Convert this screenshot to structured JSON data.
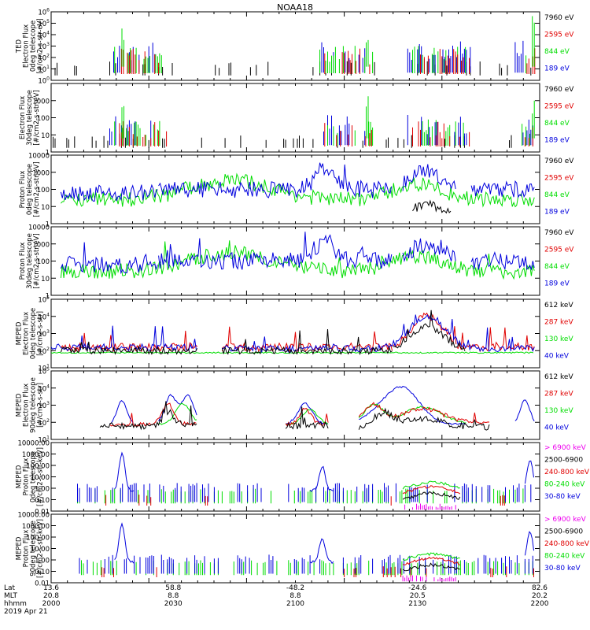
{
  "title": "NOAA18",
  "footer": {
    "row_labels": [
      "Lat",
      "MLT",
      "hhmm"
    ],
    "date": "2019 Apr 21",
    "columns": [
      {
        "lat": "13.6",
        "mlt": "20.8",
        "hhmm": "2000"
      },
      {
        "lat": "58.8",
        "mlt": "8.8",
        "hhmm": "2030"
      },
      {
        "lat": "-48.2",
        "mlt": "8.8",
        "hhmm": "2100"
      },
      {
        "lat": "-24.6",
        "mlt": "20.5",
        "hhmm": "2130"
      },
      {
        "lat": "82.6",
        "mlt": "20.2",
        "hhmm": "2200"
      }
    ]
  },
  "colors": {
    "black": "#000000",
    "red": "#e00000",
    "green": "#00dd00",
    "blue": "#0000dd",
    "magenta": "#ee00ee"
  },
  "chart_data": [
    {
      "type": "line",
      "panel": 1,
      "ylabel": [
        "TED",
        "Electron Flux",
        "0deg telescope",
        "[#/cm2-s-str-eV]"
      ],
      "yscale": "log",
      "ylim": [
        1,
        1000000
      ],
      "ytick_labels": [
        "10^0",
        "10^1",
        "10^2",
        "10^3",
        "10^4",
        "10^5",
        "10^6"
      ],
      "legend": [
        {
          "label": "7960 eV",
          "color": "#000000"
        },
        {
          "label": "2595 eV",
          "color": "#e00000"
        },
        {
          "label": "844 eV",
          "color": "#00dd00"
        },
        {
          "label": "189 eV",
          "color": "#0000dd"
        }
      ]
    },
    {
      "type": "line",
      "panel": 2,
      "ylabel": [
        "Electron Flux",
        "30deg telescope",
        "[#/cm2-s-str-eV]"
      ],
      "yscale": "log",
      "ylim": [
        1,
        10000
      ],
      "ytick_labels": [
        "1",
        "10",
        "100",
        "1000"
      ],
      "legend": [
        {
          "label": "7960 eV",
          "color": "#000000"
        },
        {
          "label": "2595 eV",
          "color": "#e00000"
        },
        {
          "label": "844 eV",
          "color": "#00dd00"
        },
        {
          "label": "189 eV",
          "color": "#0000dd"
        }
      ]
    },
    {
      "type": "line",
      "panel": 3,
      "ylabel": [
        "Proton Flux",
        "0deg telescope",
        "[#/cm2-s-str-eV]"
      ],
      "yscale": "log",
      "ylim": [
        1,
        10000
      ],
      "ytick_labels": [
        "1",
        "10",
        "100",
        "1000",
        "10000"
      ],
      "legend": [
        {
          "label": "7960 eV",
          "color": "#000000"
        },
        {
          "label": "2595 eV",
          "color": "#e00000"
        },
        {
          "label": "844 eV",
          "color": "#00dd00"
        },
        {
          "label": "189 eV",
          "color": "#0000dd"
        }
      ]
    },
    {
      "type": "line",
      "panel": 4,
      "ylabel": [
        "Proton Flux",
        "30deg telescope",
        "[#/cm2-s-str-eV]"
      ],
      "yscale": "log",
      "ylim": [
        1,
        10000
      ],
      "ytick_labels": [
        "1",
        "10",
        "100",
        "1000",
        "10000"
      ],
      "legend": [
        {
          "label": "7960 eV",
          "color": "#000000"
        },
        {
          "label": "2595 eV",
          "color": "#e00000"
        },
        {
          "label": "844 eV",
          "color": "#00dd00"
        },
        {
          "label": "189 eV",
          "color": "#0000dd"
        }
      ]
    },
    {
      "type": "line",
      "panel": 5,
      "ylabel": [
        "MEPED",
        "Electron Flux",
        "0deg telescope",
        "[#/cm2-s-str]"
      ],
      "yscale": "log",
      "ylim": [
        10,
        100000
      ],
      "ytick_labels": [
        "10^1",
        "10^2",
        "10^3",
        "10^4",
        "10^5"
      ],
      "legend": [
        {
          "label": "612 keV",
          "color": "#000000"
        },
        {
          "label": "287 keV",
          "color": "#e00000"
        },
        {
          "label": "130 keV",
          "color": "#00dd00"
        },
        {
          "label": "40 keV",
          "color": "#0000dd"
        }
      ]
    },
    {
      "type": "line",
      "panel": 6,
      "ylabel": [
        "MEPED",
        "Electron Flux",
        "90deg telescope",
        "[#/cm2-s-str]"
      ],
      "yscale": "log",
      "ylim": [
        10,
        100000
      ],
      "ytick_labels": [
        "10^1",
        "10^2",
        "10^3",
        "10^4",
        "10^5"
      ],
      "legend": [
        {
          "label": "612 keV",
          "color": "#000000"
        },
        {
          "label": "287 keV",
          "color": "#e00000"
        },
        {
          "label": "130 keV",
          "color": "#00dd00"
        },
        {
          "label": "40 keV",
          "color": "#0000dd"
        }
      ]
    },
    {
      "type": "line",
      "panel": 7,
      "ylabel": [
        "MEPED",
        "Proton Flux",
        "0deg telescope",
        "[#/cm2-s-str-keV]"
      ],
      "yscale": "log",
      "ylim": [
        0.01,
        10000
      ],
      "ytick_labels": [
        "0.01",
        "0.10",
        "1.00",
        "10.00",
        "100.00",
        "1000.00",
        "10000.00"
      ],
      "legend": [
        {
          "label": "> 6900 keV",
          "color": "#ee00ee"
        },
        {
          "label": "2500-6900",
          "color": "#000000"
        },
        {
          "label": "240-800 keV",
          "color": "#e00000"
        },
        {
          "label": "80-240 keV",
          "color": "#00dd00"
        },
        {
          "label": "30-80 keV",
          "color": "#0000dd"
        }
      ]
    },
    {
      "type": "line",
      "panel": 8,
      "ylabel": [
        "MEPED",
        "Proton Flux",
        "90deg telescope",
        "[#/cm2-s-str-keV]"
      ],
      "yscale": "log",
      "ylim": [
        0.01,
        10000
      ],
      "ytick_labels": [
        "0.01",
        "0.10",
        "1.00",
        "10.00",
        "100.00",
        "1000.00",
        "10000.00"
      ],
      "legend": [
        {
          "label": "> 6900 keV",
          "color": "#ee00ee"
        },
        {
          "label": "2500-6900",
          "color": "#000000"
        },
        {
          "label": "240-800 keV",
          "color": "#e00000"
        },
        {
          "label": "80-240 keV",
          "color": "#00dd00"
        },
        {
          "label": "30-80 keV",
          "color": "#0000dd"
        }
      ]
    }
  ]
}
